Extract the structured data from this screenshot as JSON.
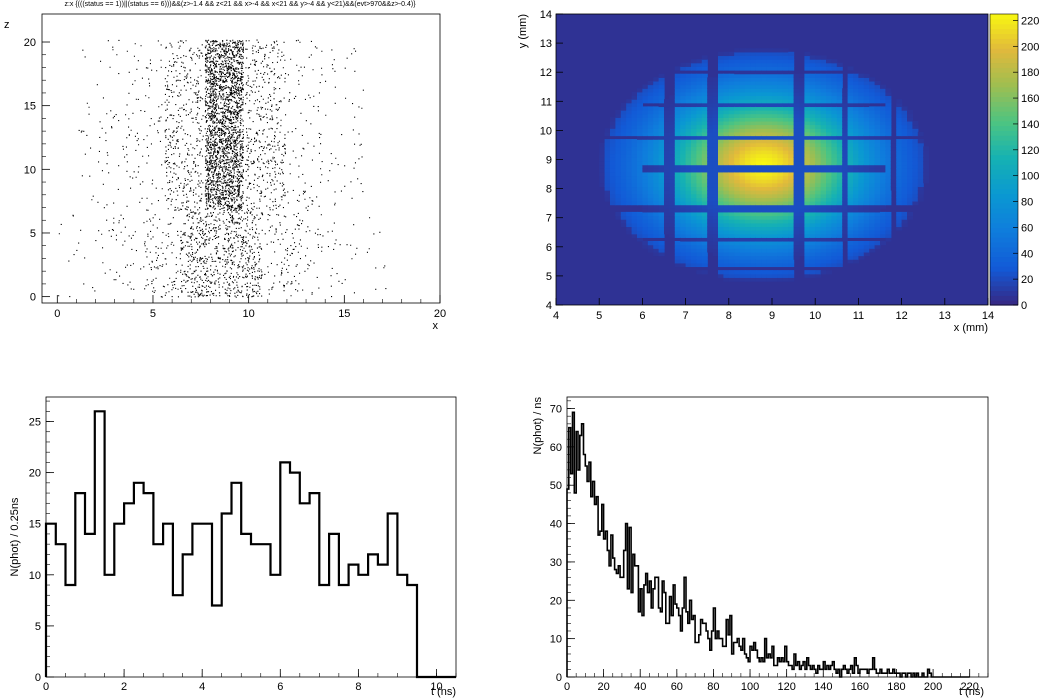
{
  "chart_data": [
    {
      "id": "scatter",
      "type": "scatter",
      "title": "z:x {(((status == 1))||(status == 6)))&&(z>-1.4 && z<21 && x>-4 && x<21 && y>-4 && y<21)&&(evt>970&&z>-0.4)}",
      "xlabel": "x",
      "ylabel": "z",
      "xlim": [
        -0.8,
        20
      ],
      "ylim": [
        -0.5,
        22.2
      ],
      "xticks": [
        "0",
        "5",
        "10",
        "15",
        "20"
      ],
      "yticks": [
        "0",
        "5",
        "10",
        "15",
        "20"
      ],
      "regions": [
        {
          "x": [
            0.0,
            2.0
          ],
          "z": [
            0.0,
            6.7
          ],
          "density": 0.4
        },
        {
          "x": [
            2.1,
            4.2
          ],
          "z": [
            0.0,
            6.7
          ],
          "density": 1.0
        },
        {
          "x": [
            4.3,
            6.3
          ],
          "z": [
            0.0,
            6.7
          ],
          "density": 2.5
        },
        {
          "x": [
            6.4,
            8.5
          ],
          "z": [
            0.0,
            6.7
          ],
          "density": 9.0
        },
        {
          "x": [
            8.6,
            10.7
          ],
          "z": [
            0.0,
            6.7
          ],
          "density": 9.0
        },
        {
          "x": [
            10.8,
            12.8
          ],
          "z": [
            0.0,
            6.7
          ],
          "density": 2.5
        },
        {
          "x": [
            12.9,
            14.9
          ],
          "z": [
            0.0,
            6.7
          ],
          "density": 1.0
        },
        {
          "x": [
            15.0,
            17.2
          ],
          "z": [
            0.0,
            6.7
          ],
          "density": 0.4
        },
        {
          "x": [
            1.1,
            3.3
          ],
          "z": [
            6.8,
            13.5
          ],
          "density": 0.7
        },
        {
          "x": [
            3.4,
            5.5
          ],
          "z": [
            6.8,
            13.5
          ],
          "density": 1.2
        },
        {
          "x": [
            5.6,
            7.6
          ],
          "z": [
            6.8,
            13.5
          ],
          "density": 5.5
        },
        {
          "x": [
            7.7,
            9.7
          ],
          "z": [
            6.8,
            13.5
          ],
          "density": 28.0
        },
        {
          "x": [
            9.8,
            11.9
          ],
          "z": [
            6.8,
            13.5
          ],
          "density": 5.5
        },
        {
          "x": [
            12.0,
            14.0
          ],
          "z": [
            6.8,
            13.5
          ],
          "density": 1.2
        },
        {
          "x": [
            14.1,
            16.0
          ],
          "z": [
            6.8,
            13.5
          ],
          "density": 0.7
        },
        {
          "x": [
            1.1,
            3.3
          ],
          "z": [
            13.6,
            20.2
          ],
          "density": 0.5
        },
        {
          "x": [
            3.4,
            5.5
          ],
          "z": [
            13.6,
            20.2
          ],
          "density": 1.0
        },
        {
          "x": [
            5.6,
            7.6
          ],
          "z": [
            13.6,
            20.2
          ],
          "density": 4.5
        },
        {
          "x": [
            7.7,
            9.7
          ],
          "z": [
            13.6,
            20.2
          ],
          "density": 28.0
        },
        {
          "x": [
            9.8,
            11.9
          ],
          "z": [
            13.6,
            20.2
          ],
          "density": 4.5
        },
        {
          "x": [
            12.0,
            14.0
          ],
          "z": [
            13.6,
            20.2
          ],
          "density": 1.0
        },
        {
          "x": [
            14.1,
            16.0
          ],
          "z": [
            13.6,
            20.2
          ],
          "density": 0.5
        }
      ]
    },
    {
      "id": "heatmap",
      "type": "heatmap",
      "xlabel": "x (mm)",
      "ylabel": "y (mm)",
      "xlim": [
        4,
        14
      ],
      "ylim": [
        4,
        14
      ],
      "xticks": [
        "4",
        "5",
        "6",
        "7",
        "8",
        "9",
        "10",
        "11",
        "12",
        "13",
        "14"
      ],
      "yticks": [
        "4",
        "5",
        "6",
        "7",
        "8",
        "9",
        "10",
        "11",
        "12",
        "13",
        "14"
      ],
      "colorbar": {
        "min": 0,
        "max": 225,
        "ticks": [
          "0",
          "20",
          "40",
          "60",
          "80",
          "100",
          "120",
          "140",
          "160",
          "180",
          "200",
          "220"
        ]
      },
      "gaps_x": [
        6.6,
        7.6,
        9.6,
        10.7,
        11.8
      ],
      "gaps_y": [
        5.3,
        6.3,
        7.3,
        8.7,
        9.75,
        10.9,
        12.0
      ],
      "gaps_y_full": [
        7.3,
        9.75
      ]
    },
    {
      "id": "hist1",
      "type": "bar",
      "xlabel": "t (ns)",
      "ylabel": "N(phot) / 0.25ns",
      "xlim": [
        0,
        10.5
      ],
      "ylim": [
        0,
        27.4
      ],
      "bin_width": 0.25,
      "xticks": [
        "0",
        "2",
        "4",
        "6",
        "8",
        "10"
      ],
      "yticks": [
        "0",
        "5",
        "10",
        "15",
        "20",
        "25"
      ],
      "values": [
        15,
        13,
        9,
        18,
        14,
        26,
        10,
        15,
        17,
        19,
        18,
        13,
        15,
        8,
        12,
        15,
        15,
        7,
        16,
        19,
        14,
        13,
        13,
        10,
        21,
        20,
        17,
        18,
        9,
        14,
        9,
        11,
        10,
        12,
        11,
        16,
        10,
        9,
        0,
        0,
        0,
        0
      ]
    },
    {
      "id": "hist2",
      "type": "bar",
      "xlabel": "t (ns)",
      "ylabel": "N(phot) / ns",
      "xlim": [
        0,
        230
      ],
      "ylim": [
        0,
        73
      ],
      "bin_width": 1,
      "xticks": [
        "0",
        "20",
        "40",
        "60",
        "80",
        "100",
        "120",
        "140",
        "160",
        "180",
        "200",
        "220"
      ],
      "yticks": [
        "0",
        "10",
        "20",
        "30",
        "40",
        "50",
        "60",
        "70"
      ],
      "values": [
        49,
        65,
        53,
        69,
        48,
        64,
        54,
        63,
        66,
        58,
        55,
        51,
        56,
        47,
        51,
        45,
        47,
        37,
        38,
        45,
        36,
        38,
        33,
        29,
        37,
        31,
        28,
        27,
        29,
        26,
        26,
        33,
        40,
        23,
        39,
        22,
        32,
        29,
        29,
        17,
        23,
        16,
        24,
        27,
        22,
        25,
        18,
        23,
        26,
        26,
        18,
        17,
        25,
        22,
        14,
        14,
        21,
        16,
        24,
        19,
        18,
        16,
        12,
        18,
        26,
        17,
        14,
        20,
        15,
        16,
        9,
        9,
        11,
        15,
        14,
        14,
        12,
        10,
        7,
        12,
        18,
        10,
        12,
        10,
        10,
        8,
        8,
        15,
        11,
        16,
        6,
        9,
        9,
        10,
        8,
        7,
        10,
        6,
        5,
        4,
        8,
        7,
        9,
        7,
        5,
        4,
        5,
        4,
        10,
        5,
        6,
        5,
        8,
        3,
        3,
        5,
        4,
        5,
        4,
        8,
        4,
        3,
        3,
        2,
        6,
        3,
        4,
        2,
        3,
        4,
        2,
        5,
        3,
        2,
        3,
        2,
        1,
        3,
        2,
        2,
        4,
        2,
        3,
        2,
        3,
        4,
        2,
        1,
        2,
        0,
        2,
        3,
        2,
        1,
        2,
        3,
        1,
        5,
        3,
        1,
        2,
        2,
        2,
        2,
        1,
        2,
        2,
        5,
        2,
        1,
        1,
        2,
        1,
        1,
        1,
        2,
        1,
        1,
        2,
        1,
        1,
        1,
        0,
        1,
        1,
        0,
        1,
        1,
        0,
        1,
        0,
        1,
        0,
        0,
        1,
        0,
        0,
        2,
        1,
        0,
        0,
        0,
        0,
        0,
        0,
        0,
        0,
        0,
        0,
        0,
        0,
        0,
        0,
        0,
        0,
        0,
        0,
        0,
        0,
        0
      ]
    }
  ]
}
